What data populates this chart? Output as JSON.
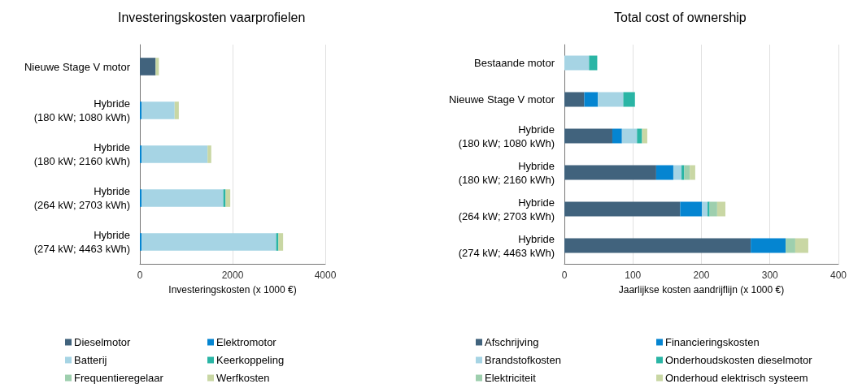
{
  "chart_data": [
    {
      "type": "bar",
      "title": "Investeringskosten vaarprofielen",
      "xlabel": "Investeringskosten (x 1000 €)",
      "orientation": "horizontal",
      "stacked": true,
      "grid": "x",
      "legend": "bottom",
      "categories": [
        "Nieuwe Stage V motor",
        "Hybride\n(180 kW; 1080 kWh)",
        "Hybride\n(180 kW; 2160 kWh)",
        "Hybride\n(264 kW; 2703 kWh)",
        "Hybride\n(274 kW; 4463 kWh)"
      ],
      "xlim": [
        0,
        4000
      ],
      "xticks": [
        0,
        2000,
        4000
      ],
      "series": [
        {
          "name": "Dieselmotor",
          "color": "#41637d",
          "values": [
            340,
            0,
            0,
            0,
            0
          ]
        },
        {
          "name": "Elektromotor",
          "color": "#0585d1",
          "values": [
            0,
            40,
            40,
            40,
            40
          ]
        },
        {
          "name": "Batterij",
          "color": "#a6d4e4",
          "values": [
            0,
            710,
            1420,
            1760,
            2900
          ]
        },
        {
          "name": "Keerkoppeling",
          "color": "#2ab5a5",
          "values": [
            0,
            0,
            0,
            50,
            50
          ]
        },
        {
          "name": "Frequentieregelaar",
          "color": "#9ecfae",
          "values": [
            0,
            0,
            0,
            0,
            0
          ]
        },
        {
          "name": "Werfkosten",
          "color": "#c9d7a4",
          "values": [
            70,
            90,
            80,
            100,
            100
          ]
        }
      ]
    },
    {
      "type": "bar",
      "title": "Total cost of ownership",
      "xlabel": "Jaarlijkse kosten aandrijflijn (x 1000 €)",
      "orientation": "horizontal",
      "stacked": true,
      "grid": "x",
      "legend": "bottom",
      "categories": [
        "Bestaande motor",
        "Nieuwe Stage V motor",
        "Hybride\n(180 kW; 1080 kWh)",
        "Hybride\n(180 kW; 2160 kWh)",
        "Hybride\n(264 kW; 2703 kWh)",
        "Hybride\n(274 kW; 4463 kWh)"
      ],
      "xlim": [
        0,
        400
      ],
      "xticks": [
        0,
        100,
        200,
        300,
        400
      ],
      "series": [
        {
          "name": "Afschrijving",
          "color": "#41637d",
          "values": [
            0,
            29,
            70,
            134,
            169,
            272
          ]
        },
        {
          "name": "Financieringskosten",
          "color": "#0585d1",
          "values": [
            0,
            20,
            14,
            25,
            32,
            51
          ]
        },
        {
          "name": "Brandstofkosten",
          "color": "#a6d4e4",
          "values": [
            36,
            37,
            22,
            12,
            8,
            0
          ]
        },
        {
          "name": "Onderhoudskosten dieselmotor",
          "color": "#2ab5a5",
          "values": [
            12,
            17,
            7,
            4,
            3,
            0
          ]
        },
        {
          "name": "Elektriciteit",
          "color": "#9ecfae",
          "values": [
            0,
            0,
            1,
            8,
            11,
            14
          ]
        },
        {
          "name": "Onderhoud elektrisch systeem",
          "color": "#c9d7a4",
          "values": [
            0,
            0,
            7,
            8,
            12,
            19
          ]
        }
      ]
    }
  ]
}
